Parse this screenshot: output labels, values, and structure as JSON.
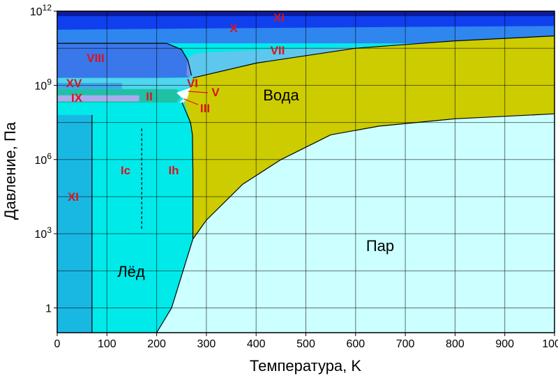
{
  "chart_data": {
    "type": "phase-diagram",
    "title": "",
    "xlabel": "Температура, K",
    "ylabel": "Давление, Па",
    "xlim": [
      0,
      1000
    ],
    "ylim_log10": [
      -1,
      12
    ],
    "y_scale": "log",
    "grid": true,
    "x_ticks": [
      "0",
      "100",
      "200",
      "300",
      "400",
      "500",
      "600",
      "700",
      "800",
      "900",
      "1000"
    ],
    "y_ticks": [
      {
        "base": "1",
        "exp": "",
        "log10": 0
      },
      {
        "base": "10",
        "exp": "3",
        "log10": 3
      },
      {
        "base": "10",
        "exp": "6",
        "log10": 6
      },
      {
        "base": "10",
        "exp": "9",
        "log10": 9
      },
      {
        "base": "10",
        "exp": "12",
        "log10": 12
      }
    ],
    "regions": [
      {
        "name": "Лёд",
        "color": "#00eaea"
      },
      {
        "name": "Вода",
        "color": "#cccc00"
      },
      {
        "name": "Пар",
        "color": "#ccffff"
      },
      {
        "name": "XI",
        "color": "#19b8e3"
      },
      {
        "name": "Ic",
        "color": "#00eaea"
      },
      {
        "name": "Ih",
        "color": "#00eaea"
      },
      {
        "name": "II",
        "color": "#1fc1a6"
      },
      {
        "name": "III",
        "color": "#e6e6e6"
      },
      {
        "name": "V",
        "color": "#ffffff"
      },
      {
        "name": "VI",
        "color": "#4dd6ee"
      },
      {
        "name": "VII",
        "color": "#2f86ee"
      },
      {
        "name": "VIII",
        "color": "#3a77ea"
      },
      {
        "name": "IX",
        "color": "#aaaaee"
      },
      {
        "name": "X",
        "color": "#1040ee"
      },
      {
        "name": "XI",
        "color": "#0c1c9a"
      },
      {
        "name": "XV",
        "color": "#3fa7e9"
      }
    ],
    "boundaries": {
      "sublimation": [
        [
          200,
          -1
        ],
        [
          230,
          0
        ],
        [
          273,
          2.79
        ]
      ],
      "vaporization": [
        [
          273,
          2.79
        ],
        [
          300,
          3.55
        ],
        [
          373,
          5.0
        ],
        [
          450,
          6.0
        ],
        [
          550,
          7.0
        ],
        [
          647,
          7.35
        ],
        [
          800,
          7.65
        ],
        [
          1000,
          7.85
        ]
      ],
      "melting_ih": [
        [
          273,
          2.79
        ],
        [
          273,
          5.5
        ],
        [
          272,
          7.0
        ],
        [
          268,
          7.5
        ],
        [
          251,
          8.3
        ]
      ],
      "ice_vii_melting": [
        [
          273,
          9.3
        ],
        [
          400,
          9.9
        ],
        [
          600,
          10.5
        ],
        [
          800,
          10.8
        ],
        [
          1000,
          11.0
        ]
      ],
      "dashed_ic_ih": [
        [
          170,
          3.2
        ],
        [
          170,
          7.3
        ]
      ]
    }
  },
  "labels": {
    "ice": "Лёд",
    "water": "Вода",
    "vapor": "Пар",
    "xi_low": "XI",
    "ic": "Ic",
    "ih": "Ih",
    "ii": "II",
    "iii": "III",
    "v": "V",
    "vi": "VI",
    "vii": "VII",
    "viii": "VIII",
    "ix": "IX",
    "x": "X",
    "xi_high": "XI",
    "xv": "XV"
  }
}
